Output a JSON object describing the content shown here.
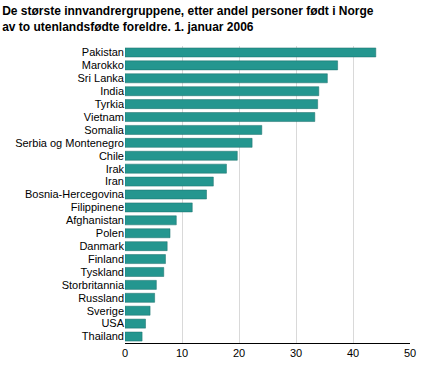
{
  "chart_data": {
    "type": "bar",
    "orientation": "horizontal",
    "title": [
      "De største innvandrergruppene, etter andel personer født i Norge",
      "av to utenlandsfødte foreldre. 1. januar 2006"
    ],
    "categories": [
      "Pakistan",
      "Marokko",
      "Sri Lanka",
      "India",
      "Tyrkia",
      "Vietnam",
      "Somalia",
      "Serbia og Montenegro",
      "Chile",
      "Irak",
      "Iran",
      "Bosnia-Hercegovina",
      "Filippinene",
      "Afghanistan",
      "Polen",
      "Danmark",
      "Finland",
      "Tyskland",
      "Storbritannia",
      "Russland",
      "Sverige",
      "USA",
      "Thailand"
    ],
    "values": [
      44,
      37.3,
      35.5,
      34,
      33.8,
      33.3,
      24,
      22.3,
      19.7,
      17.8,
      15.5,
      14.3,
      11.8,
      9,
      7.9,
      7.4,
      7.1,
      6.8,
      5.5,
      5.2,
      4.4,
      3.6,
      3
    ],
    "color": "#24968f",
    "xlim": [
      0,
      50
    ],
    "xticks": [
      0,
      10,
      20,
      30,
      40,
      50
    ],
    "grid": true
  }
}
